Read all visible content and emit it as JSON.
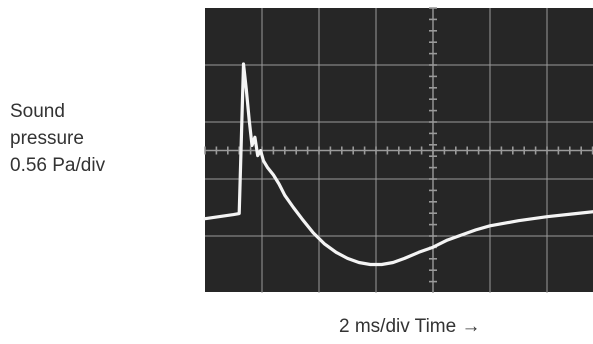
{
  "chart_data": {
    "type": "line",
    "ylabel_lines": [
      "Sound",
      "pressure",
      "0.56 Pa/div"
    ],
    "xlabel": "2 ms/div Time →",
    "grid": true,
    "divisions": {
      "x": 7,
      "y": 5
    },
    "xlim": [
      0,
      14
    ],
    "ylim": [
      -1.4,
      1.4
    ],
    "x_unit": "ms",
    "y_unit": "Pa",
    "colors": {
      "screen": "#262626",
      "grid": "#9a9a9a",
      "trace": "#f4f4f4"
    },
    "series": [
      {
        "x": [
          0,
          1.0,
          1.2,
          1.35,
          1.45,
          1.55,
          1.65,
          1.75,
          1.85,
          1.95,
          2.05,
          2.2,
          2.4,
          2.6,
          2.8,
          3.1,
          3.4,
          3.8,
          4.2,
          4.6,
          5.0,
          5.4,
          5.8,
          6.2,
          6.6,
          7.0,
          7.5,
          8.0,
          8.5,
          9.0,
          9.5,
          10.0,
          11.0,
          12.0,
          13.0,
          14.0
        ],
        "y": [
          -0.67,
          -0.63,
          -0.62,
          0.85,
          0.6,
          0.3,
          0.05,
          0.13,
          -0.05,
          0.0,
          -0.1,
          -0.17,
          -0.24,
          -0.33,
          -0.44,
          -0.56,
          -0.67,
          -0.81,
          -0.92,
          -1.0,
          -1.06,
          -1.1,
          -1.12,
          -1.12,
          -1.1,
          -1.06,
          -1.0,
          -0.95,
          -0.88,
          -0.83,
          -0.78,
          -0.74,
          -0.69,
          -0.65,
          -0.62,
          -0.59
        ]
      }
    ]
  }
}
